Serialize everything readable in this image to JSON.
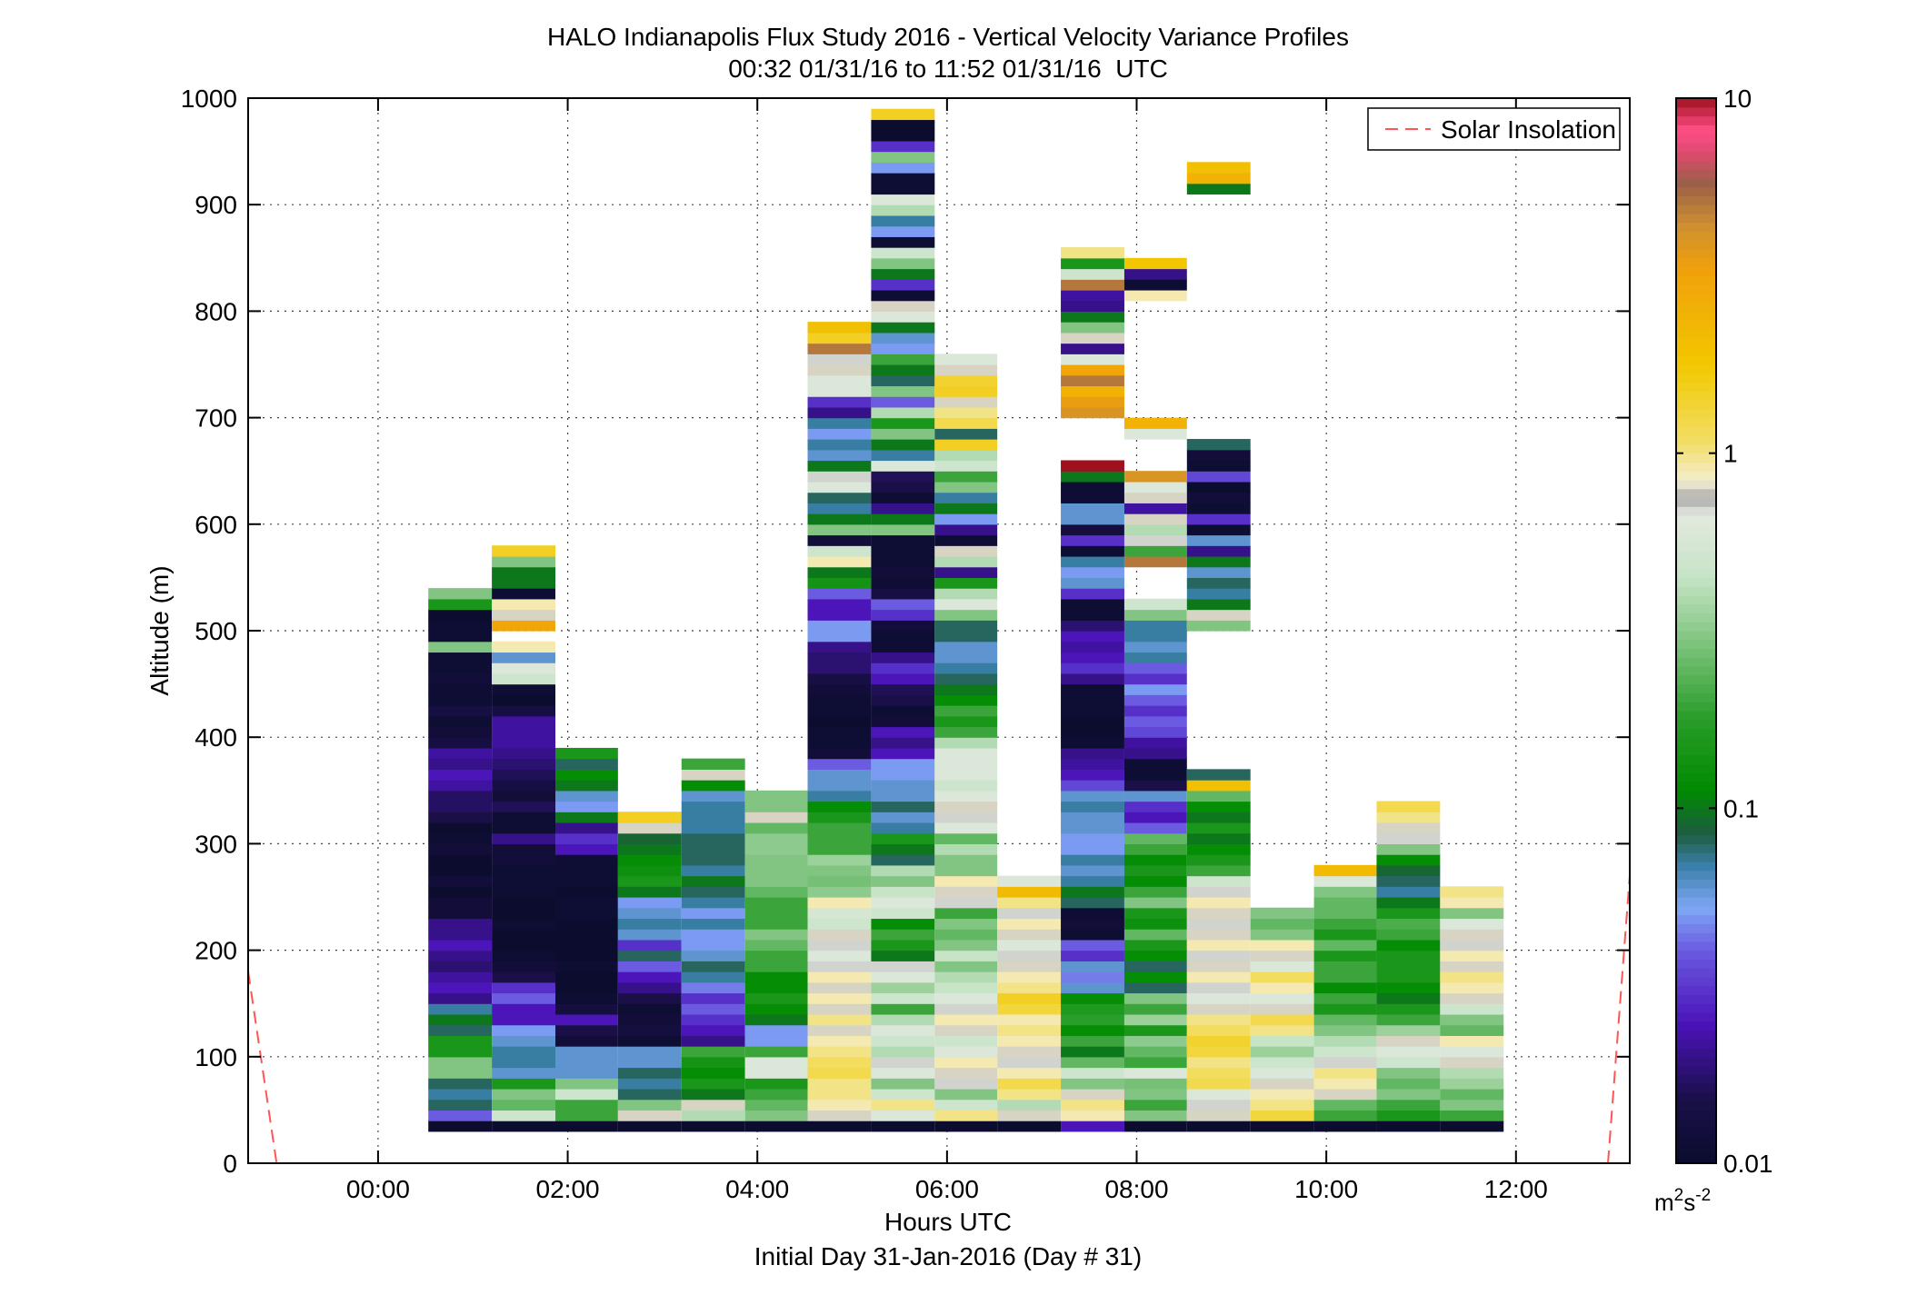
{
  "chart_data": {
    "type": "heatmap",
    "title": "HALO Indianapolis Flux Study 2016 - Vertical Velocity Variance Profiles",
    "subtitle": "00:32 01/31/16 to 11:52 01/31/16  UTC",
    "xlabel": "Hours UTC",
    "xlabel2": "Initial Day 31-Jan-2016 (Day # 31)",
    "ylabel": "Altitude (m)",
    "xlim": [
      -1.37,
      13.2
    ],
    "ylim": [
      0,
      1000
    ],
    "x_ticks": [
      0,
      2,
      4,
      6,
      8,
      10,
      12
    ],
    "x_tick_labels": [
      "00:00",
      "02:00",
      "04:00",
      "06:00",
      "08:00",
      "10:00",
      "12:00"
    ],
    "y_ticks": [
      0,
      100,
      200,
      300,
      400,
      500,
      600,
      700,
      800,
      900,
      1000
    ],
    "y_tick_labels": [
      "0",
      "100",
      "200",
      "300",
      "400",
      "500",
      "600",
      "700",
      "800",
      "900",
      "1000"
    ],
    "grid": true,
    "colorbar": {
      "scale": "log",
      "range": [
        0.01,
        10
      ],
      "tick_values": [
        0.01,
        0.1,
        1,
        10
      ],
      "tick_labels": [
        "0.01",
        "0.1",
        "1",
        "10"
      ],
      "units_base": "m",
      "units_sup1": "2",
      "units_mid": "s",
      "units_sup2": "-2",
      "color_stops": [
        [
          0.0,
          "#0b0c2e"
        ],
        [
          0.06,
          "#1a1048"
        ],
        [
          0.13,
          "#4a12b8"
        ],
        [
          0.2,
          "#6a5ae0"
        ],
        [
          0.24,
          "#7fa7f5"
        ],
        [
          0.28,
          "#3a7fa8"
        ],
        [
          0.31,
          "#1d5c40"
        ],
        [
          0.35,
          "#008a00"
        ],
        [
          0.42,
          "#2b9e2b"
        ],
        [
          0.49,
          "#7fc47f"
        ],
        [
          0.55,
          "#c6e4c6"
        ],
        [
          0.61,
          "#e4e8e0"
        ],
        [
          0.625,
          "#a9a9a9"
        ],
        [
          0.64,
          "#f3eed2"
        ],
        [
          0.68,
          "#f2dd60"
        ],
        [
          0.75,
          "#f2c800"
        ],
        [
          0.84,
          "#f0a00a"
        ],
        [
          0.88,
          "#cf9030"
        ],
        [
          0.92,
          "#9a6048"
        ],
        [
          0.95,
          "#e04a70"
        ],
        [
          0.97,
          "#ff4f86"
        ],
        [
          1.0,
          "#a0101f"
        ]
      ]
    },
    "legend": {
      "label": "Solar Insolation",
      "position": "top-right",
      "color": "#ff5555",
      "style": "dashed"
    },
    "solar_insolation": [
      {
        "x": [
          -1.37,
          -1.07
        ],
        "y": [
          180,
          0
        ]
      },
      {
        "x": [
          12.97,
          13.2
        ],
        "y": [
          0,
          270
        ]
      }
    ],
    "altitude_step_m": 10,
    "profiles": [
      {
        "start": 0.53,
        "end": 1.2,
        "base_alt": 30,
        "values": [
          0.01,
          0.04,
          0.08,
          0.07,
          0.08,
          0.3,
          0.3,
          0.15,
          0.15,
          0.08,
          0.1,
          0.07,
          0.02,
          0.025,
          0.022,
          0.018,
          0.02,
          0.025,
          0.02,
          0.02,
          0.012,
          0.012,
          0.01,
          0.012,
          0.01,
          0.01,
          0.012,
          0.011,
          0.01,
          0.015,
          0.017,
          0.017,
          0.022,
          0.025,
          0.02,
          0.022,
          0.014,
          0.012,
          0.011,
          0.014,
          0.011,
          0.011,
          0.012,
          0.011,
          0.011,
          0.3,
          0.011,
          0.011,
          0.01,
          0.15,
          0.3
        ]
      },
      {
        "start": 1.2,
        "end": 1.87,
        "base_alt": 30,
        "values": [
          0.01,
          0.5,
          0.25,
          0.3,
          0.15,
          0.06,
          0.07,
          0.07,
          0.06,
          0.05,
          0.025,
          0.025,
          0.04,
          0.03,
          0.015,
          0.012,
          0.011,
          0.01,
          0.01,
          0.011,
          0.01,
          0.01,
          0.011,
          0.011,
          0.011,
          0.012,
          0.012,
          0.02,
          0.011,
          0.011,
          0.016,
          0.012,
          0.014,
          0.016,
          0.018,
          0.02,
          0.022,
          0.022,
          0.022,
          0.014,
          0.01,
          0.011,
          0.5,
          0.6,
          0.06,
          0.9
        ],
        "segments": [
          {
            "base_alt": 500,
            "values": [
              3.0,
              0.8,
              0.9,
              0.011,
              0.1,
              0.1,
              0.3,
              1.5
            ]
          }
        ]
      },
      {
        "start": 1.87,
        "end": 2.53,
        "base_alt": 30,
        "values": [
          0.01,
          0.2,
          0.2,
          0.5,
          0.3,
          0.06,
          0.06,
          0.06,
          0.012,
          0.015,
          0.025,
          0.013,
          0.011,
          0.01,
          0.01,
          0.011,
          0.01,
          0.01,
          0.01,
          0.01,
          0.011,
          0.011,
          0.01,
          0.011,
          0.011,
          0.011,
          0.025,
          0.03,
          0.02,
          0.1,
          0.05,
          0.06,
          0.1,
          0.12,
          0.08,
          0.15
        ]
      },
      {
        "start": 2.53,
        "end": 3.2,
        "base_alt": 30,
        "values": [
          0.01,
          0.8,
          0.3,
          0.08,
          0.07,
          0.08,
          0.06,
          0.06,
          0.011,
          0.013,
          0.012,
          0.011,
          0.015,
          0.02,
          0.025,
          0.04,
          0.08,
          0.03,
          0.06,
          0.07,
          0.06,
          0.05,
          0.1,
          0.15,
          0.13,
          0.12,
          0.1,
          0.09,
          0.8,
          1.5
        ]
      },
      {
        "start": 3.2,
        "end": 3.87,
        "base_alt": 30,
        "values": [
          0.01,
          0.4,
          0.8,
          0.1,
          0.15,
          0.12,
          0.14,
          0.2,
          0.02,
          0.025,
          0.03,
          0.04,
          0.03,
          0.045,
          0.07,
          0.08,
          0.06,
          0.05,
          0.05,
          0.07,
          0.05,
          0.07,
          0.08,
          0.1,
          0.07,
          0.08,
          0.08,
          0.08,
          0.07,
          0.07,
          0.07,
          0.06,
          0.12,
          0.8,
          0.2
        ]
      },
      {
        "start": 3.87,
        "end": 4.53,
        "base_alt": 30,
        "values": [
          0.01,
          0.3,
          0.25,
          0.2,
          0.15,
          0.6,
          0.6,
          0.2,
          0.05,
          0.05,
          0.1,
          0.12,
          0.15,
          0.12,
          0.12,
          0.2,
          0.2,
          0.25,
          0.3,
          0.2,
          0.2,
          0.2,
          0.25,
          0.3,
          0.3,
          0.3,
          0.32,
          0.32,
          0.25,
          0.8,
          0.3,
          0.3
        ]
      },
      {
        "start": 4.53,
        "end": 5.2,
        "base_alt": 30,
        "values": [
          0.01,
          0.8,
          0.9,
          1.0,
          1.0,
          1.2,
          1.1,
          1.0,
          0.9,
          0.8,
          1.0,
          0.8,
          0.9,
          0.8,
          0.9,
          0.7,
          0.6,
          0.7,
          0.8,
          0.5,
          0.55,
          0.9,
          0.32,
          0.28,
          0.3,
          0.35,
          0.2,
          0.2,
          0.2,
          0.15,
          0.12,
          0.07,
          0.06,
          0.06,
          0.04,
          0.012,
          0.011,
          0.011,
          0.01,
          0.011,
          0.011,
          0.012,
          0.014,
          0.018,
          0.018,
          0.02,
          0.05,
          0.05,
          0.025,
          0.025,
          0.04,
          0.14,
          0.1,
          0.9,
          0.5,
          0.012,
          0.3,
          0.1,
          0.07,
          0.08,
          0.6,
          0.7,
          0.1,
          0.06,
          0.07,
          0.05,
          0.07,
          0.02,
          0.03,
          0.6,
          0.6,
          0.8,
          0.7,
          5.0,
          1.5,
          2.0
        ]
      },
      {
        "start": 5.2,
        "end": 5.87,
        "base_alt": 30,
        "values": [
          0.01,
          0.6,
          1.0,
          0.5,
          0.3,
          0.6,
          0.7,
          0.4,
          0.5,
          0.6,
          0.4,
          0.2,
          0.5,
          0.35,
          0.6,
          0.7,
          0.1,
          0.15,
          0.2,
          0.12,
          0.5,
          0.6,
          0.45,
          0.3,
          0.4,
          0.08,
          0.1,
          0.15,
          0.07,
          0.06,
          0.08,
          0.06,
          0.06,
          0.05,
          0.05,
          0.025,
          0.02,
          0.025,
          0.012,
          0.011,
          0.015,
          0.016,
          0.025,
          0.03,
          0.02,
          0.011,
          0.011,
          0.012,
          0.03,
          0.04,
          0.014,
          0.011,
          0.012,
          0.011,
          0.011,
          0.011,
          0.3,
          0.1,
          0.02,
          0.011,
          0.015,
          0.016,
          0.6,
          0.07,
          0.1,
          0.3,
          0.15,
          0.4,
          0.04,
          0.3,
          0.08,
          0.1,
          0.2,
          0.05,
          0.06,
          0.1,
          0.6,
          0.8,
          0.011,
          0.03,
          0.1,
          0.3,
          0.5,
          0.011,
          0.05,
          0.07,
          0.4,
          0.6,
          0.011,
          0.011,
          0.05,
          0.3,
          0.03,
          0.01,
          0.01,
          1.5
        ]
      },
      {
        "start": 5.87,
        "end": 6.53,
        "base_alt": 30,
        "values": [
          0.01,
          1.0,
          0.5,
          0.3,
          0.7,
          0.8,
          0.9,
          0.6,
          0.5,
          0.8,
          0.9,
          0.7,
          0.6,
          0.45,
          0.4,
          0.3,
          0.45,
          0.3,
          0.25,
          0.3,
          0.2,
          0.7,
          0.8,
          0.9,
          0.3,
          0.3,
          0.4,
          0.25,
          0.6,
          0.7,
          0.8,
          0.6,
          0.5,
          0.6,
          0.6,
          0.6,
          0.4,
          0.2,
          0.15,
          0.2,
          0.12,
          0.1,
          0.08,
          0.07,
          0.06,
          0.06,
          0.08,
          0.08,
          0.3,
          0.6,
          0.4,
          0.15,
          0.02,
          0.4,
          0.8,
          0.011,
          0.02,
          0.05,
          0.1,
          0.07,
          0.3,
          0.2,
          0.5,
          0.4,
          1.5,
          0.08,
          1.2,
          1.0,
          0.8,
          1.5,
          1.4,
          0.8,
          0.6
        ]
      },
      {
        "start": 6.53,
        "end": 7.2,
        "base_alt": 30,
        "values": [
          0.01,
          0.8,
          0.4,
          1.0,
          1.2,
          0.9,
          0.7,
          0.8,
          0.9,
          1.0,
          0.9,
          1.3,
          1.5,
          1.0,
          0.9,
          0.8,
          0.7,
          0.6,
          0.8,
          0.9,
          0.7,
          1.0,
          2.2,
          0.6
        ]
      },
      {
        "start": 7.2,
        "end": 7.87,
        "base_alt": 30,
        "values": [
          0.025,
          0.9,
          1.0,
          0.8,
          0.3,
          0.5,
          0.25,
          0.1,
          0.2,
          0.12,
          0.18,
          0.16,
          0.12,
          0.06,
          0.045,
          0.06,
          0.03,
          0.04,
          0.011,
          0.012,
          0.011,
          0.08,
          0.1,
          0.07,
          0.06,
          0.07,
          0.05,
          0.05,
          0.06,
          0.06,
          0.07,
          0.06,
          0.035,
          0.025,
          0.022,
          0.02,
          0.011,
          0.01,
          0.01,
          0.011,
          0.011,
          0.011,
          0.02,
          0.03,
          0.025,
          0.022,
          0.025,
          0.018,
          0.011,
          0.011,
          0.03,
          0.06,
          0.05,
          0.07,
          0.011,
          0.03,
          0.013,
          0.06,
          0.06,
          0.011,
          0.011,
          0.1,
          10.0
        ],
        "segments": [
          {
            "base_alt": 700,
            "values": [
              4.0,
              3.5,
              2.5,
              5.0,
              3.0,
              0.6,
              0.02,
              0.8,
              0.3,
              0.1,
              0.02,
              0.022,
              0.6,
              0.3
            ]
          },
          {
            "base_alt": 820,
            "values": [
              5.0,
              0.5,
              0.15,
              1.0
            ]
          }
        ]
      },
      {
        "start": 7.87,
        "end": 8.53,
        "base_alt": 30,
        "values": [
          0.01,
          0.3,
          0.2,
          0.3,
          0.28,
          0.6,
          0.2,
          0.25,
          0.32,
          0.15,
          0.35,
          0.2,
          0.3,
          0.08,
          0.12,
          0.08,
          0.12,
          0.15,
          0.25,
          0.13,
          0.15,
          0.3,
          0.2,
          0.12,
          0.15,
          0.12,
          0.2,
          0.25,
          0.04,
          0.025,
          0.03,
          0.06,
          0.015,
          0.011,
          0.011,
          0.02,
          0.022,
          0.035,
          0.04,
          0.03,
          0.04,
          0.05,
          0.03,
          0.04,
          0.07,
          0.06,
          0.07,
          0.07,
          0.3,
          0.5
        ],
        "segments": [
          {
            "base_alt": 560,
            "values": [
              5.0,
              0.2,
              0.7,
              0.4,
              0.8,
              0.022,
              0.8,
              0.6,
              4.0
            ]
          },
          {
            "base_alt": 680,
            "values": [
              0.6,
              2.5
            ]
          },
          {
            "base_alt": 810,
            "values": [
              0.9,
              0.011,
              0.02,
              1.8
            ]
          }
        ]
      },
      {
        "start": 8.53,
        "end": 9.2,
        "base_alt": 30,
        "values": [
          0.01,
          0.8,
          0.7,
          0.6,
          1.2,
          1.1,
          1.0,
          1.3,
          1.4,
          1.1,
          1.0,
          0.8,
          0.6,
          0.7,
          0.9,
          0.8,
          0.7,
          0.9,
          0.8,
          0.7,
          0.8,
          0.9,
          0.7,
          0.5,
          0.2,
          0.15,
          0.12,
          0.1,
          0.15,
          0.1,
          0.12,
          0.25,
          2.0,
          0.08
        ],
        "segments": [
          {
            "base_alt": 500,
            "values": [
              0.3,
              0.8,
              0.1,
              0.07,
              0.08,
              0.06,
              0.1,
              0.02,
              0.06,
              0.011,
              0.03,
              0.011,
              0.012,
              0.01,
              0.035,
              0.011,
              0.012,
              0.08
            ]
          },
          {
            "base_alt": 910,
            "values": [
              0.1,
              2.5,
              2.0
            ]
          }
        ]
      },
      {
        "start": 9.2,
        "end": 9.87,
        "base_alt": 30,
        "values": [
          0.01,
          1.3,
          1.0,
          0.9,
          0.8,
          0.6,
          0.5,
          0.35,
          0.45,
          1.0,
          1.2,
          0.8,
          0.6,
          0.9,
          1.1,
          0.6,
          0.8,
          0.9,
          0.3,
          0.25,
          0.3
        ]
      },
      {
        "start": 9.87,
        "end": 10.53,
        "base_alt": 30,
        "values": [
          0.01,
          0.2,
          0.25,
          0.8,
          0.9,
          1.0,
          0.7,
          0.5,
          0.4,
          0.3,
          0.25,
          0.15,
          0.2,
          0.12,
          0.2,
          0.2,
          0.15,
          0.25,
          0.15,
          0.2,
          0.25,
          0.25,
          0.3,
          0.6,
          2.2
        ]
      },
      {
        "start": 10.53,
        "end": 11.2,
        "base_alt": 30,
        "values": [
          0.01,
          0.15,
          0.2,
          0.3,
          0.25,
          0.3,
          0.5,
          0.6,
          0.8,
          0.35,
          0.2,
          0.15,
          0.1,
          0.12,
          0.15,
          0.15,
          0.15,
          0.12,
          0.2,
          0.22,
          0.15,
          0.1,
          0.07,
          0.08,
          0.09,
          0.12,
          0.3,
          0.7,
          0.8,
          1.0,
          1.2
        ]
      },
      {
        "start": 11.2,
        "end": 11.87,
        "base_alt": 30,
        "values": [
          0.01,
          0.2,
          0.3,
          0.25,
          0.35,
          0.4,
          0.8,
          0.6,
          0.9,
          0.25,
          0.3,
          0.5,
          0.8,
          0.9,
          1.0,
          0.8,
          0.9,
          0.7,
          0.8,
          0.6,
          0.3,
          0.9,
          1.0
        ]
      }
    ]
  }
}
